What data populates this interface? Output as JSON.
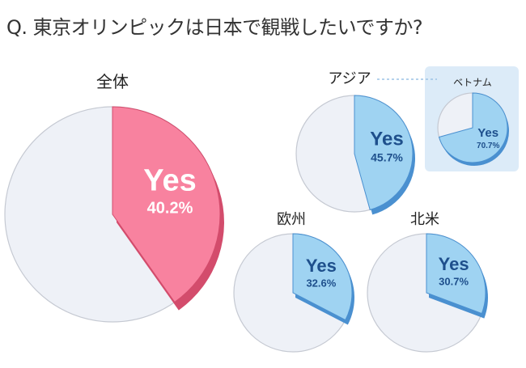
{
  "question": "Q. 東京オリンピックは日本で観戦したいですか?",
  "colors": {
    "overall_fill": "#f8829f",
    "overall_dark": "#d34c6c",
    "overall_text": "#ffffff",
    "region_fill": "#9fd3f2",
    "region_dark": "#4a90d0",
    "region_text": "#1e4f8c",
    "rest_fill": "#eef1f7",
    "rest_stroke": "#c5c9d2",
    "inset_bg": "#dcebf8"
  },
  "chart_data": [
    {
      "type": "pie",
      "title": "全体",
      "slices": [
        {
          "label": "Yes",
          "value": 40.2
        },
        {
          "value": 59.8
        }
      ],
      "value_text": "40.2%"
    },
    {
      "type": "pie",
      "title": "アジア",
      "slices": [
        {
          "label": "Yes",
          "value": 45.7
        },
        {
          "value": 54.3
        }
      ],
      "value_text": "45.7%"
    },
    {
      "type": "pie",
      "title": "ベトナム",
      "slices": [
        {
          "label": "Yes",
          "value": 70.7
        },
        {
          "value": 29.3
        }
      ],
      "value_text": "70.7%"
    },
    {
      "type": "pie",
      "title": "欧州",
      "slices": [
        {
          "label": "Yes",
          "value": 32.6
        },
        {
          "value": 67.4
        }
      ],
      "value_text": "32.6%"
    },
    {
      "type": "pie",
      "title": "北米",
      "slices": [
        {
          "label": "Yes",
          "value": 30.7
        },
        {
          "value": 69.3
        }
      ],
      "value_text": "30.7%"
    }
  ]
}
